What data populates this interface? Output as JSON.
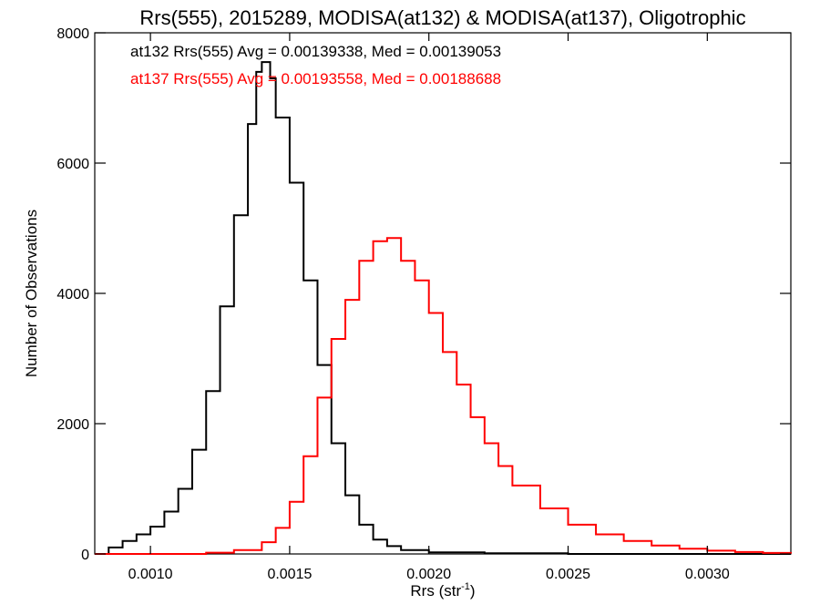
{
  "chart_data": {
    "type": "line",
    "title": "Rrs(555), 2015289, MODISA(at132) & MODISA(at137), Oligotrophic",
    "xlabel_main": "Rrs (str",
    "xlabel_sup": "-1",
    "xlabel_close": ")",
    "ylabel": "Number of Observations",
    "xlim": [
      0.0008,
      0.0033
    ],
    "ylim": [
      0,
      8000
    ],
    "x_ticks": [
      0.001,
      0.0015,
      0.002,
      0.0025,
      0.003
    ],
    "x_tick_labels": [
      "0.0010",
      "0.0015",
      "0.0020",
      "0.0025",
      "0.0030"
    ],
    "y_ticks": [
      0,
      2000,
      4000,
      6000,
      8000
    ],
    "y_tick_labels": [
      "0",
      "2000",
      "4000",
      "6000",
      "8000"
    ],
    "grid": false,
    "legend_position": "top-left",
    "series": [
      {
        "color": "#000000",
        "annotation": "at132 Rrs(555) Avg = 0.00139338, Med = 0.00139053",
        "points": [
          [
            0.0008,
            0
          ],
          [
            0.00085,
            100
          ],
          [
            0.0009,
            200
          ],
          [
            0.00095,
            300
          ],
          [
            0.001,
            420
          ],
          [
            0.00105,
            650
          ],
          [
            0.0011,
            1000
          ],
          [
            0.00115,
            1600
          ],
          [
            0.0012,
            2500
          ],
          [
            0.00125,
            3800
          ],
          [
            0.0013,
            5200
          ],
          [
            0.00135,
            6600
          ],
          [
            0.00138,
            7400
          ],
          [
            0.0014,
            7550
          ],
          [
            0.00143,
            7300
          ],
          [
            0.00145,
            6700
          ],
          [
            0.0015,
            5700
          ],
          [
            0.00155,
            4200
          ],
          [
            0.0016,
            2900
          ],
          [
            0.00165,
            1700
          ],
          [
            0.0017,
            900
          ],
          [
            0.00175,
            450
          ],
          [
            0.0018,
            220
          ],
          [
            0.00185,
            120
          ],
          [
            0.0019,
            60
          ],
          [
            0.002,
            25
          ],
          [
            0.0022,
            10
          ],
          [
            0.0025,
            0
          ],
          [
            0.0033,
            0
          ]
        ]
      },
      {
        "color": "#ff0000",
        "annotation": "at137 Rrs(555) Avg = 0.00193558, Med = 0.00188688",
        "points": [
          [
            0.0008,
            0
          ],
          [
            0.0012,
            20
          ],
          [
            0.0013,
            60
          ],
          [
            0.0014,
            180
          ],
          [
            0.00145,
            400
          ],
          [
            0.0015,
            800
          ],
          [
            0.00155,
            1500
          ],
          [
            0.0016,
            2400
          ],
          [
            0.00165,
            3300
          ],
          [
            0.0017,
            3900
          ],
          [
            0.00175,
            4500
          ],
          [
            0.0018,
            4800
          ],
          [
            0.00185,
            4850
          ],
          [
            0.0019,
            4500
          ],
          [
            0.00195,
            4200
          ],
          [
            0.002,
            3700
          ],
          [
            0.00205,
            3100
          ],
          [
            0.0021,
            2600
          ],
          [
            0.00215,
            2100
          ],
          [
            0.0022,
            1700
          ],
          [
            0.00225,
            1350
          ],
          [
            0.0023,
            1050
          ],
          [
            0.0024,
            700
          ],
          [
            0.0025,
            450
          ],
          [
            0.0026,
            300
          ],
          [
            0.0027,
            200
          ],
          [
            0.0028,
            130
          ],
          [
            0.0029,
            80
          ],
          [
            0.003,
            50
          ],
          [
            0.0031,
            30
          ],
          [
            0.0032,
            15
          ],
          [
            0.0033,
            5
          ]
        ]
      }
    ]
  }
}
